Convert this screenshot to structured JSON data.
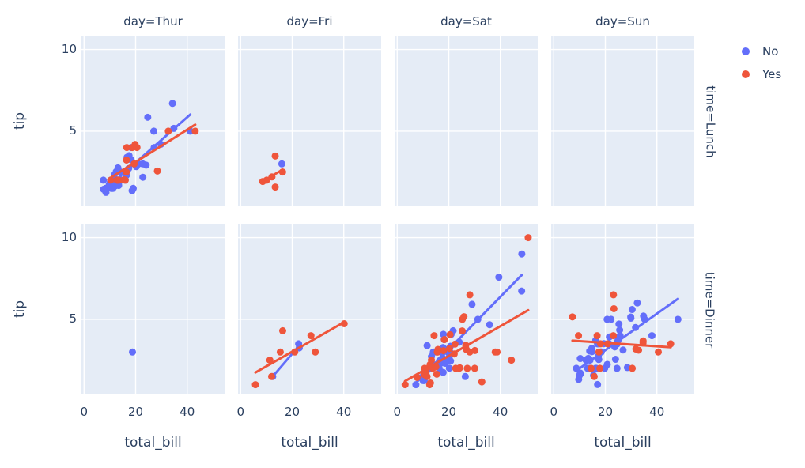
{
  "colors": {
    "series_no": "#636EFA",
    "series_yes": "#EF553B",
    "panel_bg": "#E5ECF6",
    "grid": "#FFFFFF",
    "text": "#2a3f5f"
  },
  "legend": {
    "items": [
      {
        "label": "No",
        "color": "#636EFA"
      },
      {
        "label": "Yes",
        "color": "#EF553B"
      }
    ]
  },
  "chart_data": {
    "type": "scatter",
    "title": "",
    "xlabel": "total_bill",
    "ylabel": "tip",
    "x_ticks": [
      0,
      20,
      40
    ],
    "y_ticks": [
      5,
      10
    ],
    "x_range": [
      -1,
      54.5
    ],
    "y_range": [
      0.4,
      10.85
    ],
    "grid": true,
    "legend_position": "top-right",
    "trendline": "ols",
    "facet_col_titles": [
      "day=Thur",
      "day=Fri",
      "day=Sat",
      "day=Sun"
    ],
    "facet_row_titles": [
      "time=Lunch",
      "time=Dinner"
    ],
    "series_names": [
      "No",
      "Yes"
    ],
    "facets": [
      {
        "row": 0,
        "col": 0,
        "name": "thur-lunch",
        "series": {
          "No": [
            [
              27.2,
              4.0
            ],
            [
              22.76,
              3.0
            ],
            [
              17.29,
              2.71
            ],
            [
              16.66,
              3.4
            ],
            [
              10.07,
              1.83
            ],
            [
              15.98,
              2.03
            ],
            [
              34.83,
              5.17
            ],
            [
              13.03,
              2.0
            ],
            [
              18.28,
              4.0
            ],
            [
              24.71,
              5.85
            ],
            [
              21.16,
              3.0
            ],
            [
              10.65,
              1.5
            ],
            [
              12.43,
              1.8
            ],
            [
              24.08,
              2.92
            ],
            [
              11.69,
              2.31
            ],
            [
              13.42,
              1.68
            ],
            [
              14.26,
              2.5
            ],
            [
              15.95,
              2.0
            ],
            [
              12.48,
              2.52
            ],
            [
              29.8,
              4.2
            ],
            [
              8.52,
              1.48
            ],
            [
              14.52,
              2.0
            ],
            [
              11.38,
              2.0
            ],
            [
              22.82,
              2.18
            ],
            [
              19.08,
              1.5
            ],
            [
              20.27,
              2.83
            ],
            [
              11.17,
              1.5
            ],
            [
              12.26,
              2.0
            ],
            [
              18.26,
              3.25
            ],
            [
              8.51,
              1.25
            ],
            [
              10.33,
              2.0
            ],
            [
              14.15,
              2.0
            ],
            [
              13.16,
              2.75
            ],
            [
              17.47,
              3.5
            ],
            [
              34.3,
              6.7
            ],
            [
              41.19,
              5.0
            ],
            [
              27.05,
              5.0
            ],
            [
              16.43,
              2.3
            ],
            [
              8.35,
              1.5
            ],
            [
              18.64,
              1.36
            ],
            [
              11.87,
              1.63
            ],
            [
              9.78,
              1.73
            ],
            [
              7.51,
              2.0
            ],
            [
              7.56,
              1.44
            ]
          ],
          "Yes": [
            [
              19.44,
              3.0
            ],
            [
              32.68,
              5.0
            ],
            [
              16.0,
              2.0
            ],
            [
              19.81,
              4.19
            ],
            [
              28.44,
              2.56
            ],
            [
              15.48,
              2.02
            ],
            [
              16.58,
              4.0
            ],
            [
              10.34,
              2.0
            ],
            [
              43.11,
              5.0
            ],
            [
              13.0,
              2.0
            ],
            [
              13.51,
              2.0
            ],
            [
              18.71,
              4.0
            ],
            [
              12.74,
              2.01
            ],
            [
              13.0,
              2.0
            ],
            [
              16.4,
              2.5
            ],
            [
              20.53,
              4.0
            ],
            [
              16.47,
              3.23
            ]
          ]
        }
      },
      {
        "row": 0,
        "col": 1,
        "name": "fri-lunch",
        "series": {
          "No": [
            [
              15.98,
              3.0
            ]
          ],
          "Yes": [
            [
              12.16,
              2.2
            ],
            [
              13.42,
              3.48
            ],
            [
              8.58,
              1.92
            ],
            [
              13.42,
              1.58
            ],
            [
              16.27,
              2.5
            ],
            [
              10.09,
              2.0
            ]
          ]
        }
      },
      {
        "row": 0,
        "col": 2,
        "name": "sat-lunch",
        "series": {
          "No": [],
          "Yes": []
        }
      },
      {
        "row": 0,
        "col": 3,
        "name": "sun-lunch",
        "series": {
          "No": [],
          "Yes": []
        }
      },
      {
        "row": 1,
        "col": 0,
        "name": "thur-dinner",
        "series": {
          "No": [
            [
              18.78,
              3.0
            ]
          ],
          "Yes": []
        }
      },
      {
        "row": 1,
        "col": 1,
        "name": "fri-dinner",
        "series": {
          "No": [
            [
              22.49,
              3.5
            ],
            [
              22.75,
              3.25
            ],
            [
              12.46,
              1.5
            ]
          ],
          "Yes": [
            [
              28.97,
              3.0
            ],
            [
              5.75,
              1.0
            ],
            [
              16.32,
              4.3
            ],
            [
              40.17,
              4.73
            ],
            [
              27.28,
              4.0
            ],
            [
              12.03,
              1.5
            ],
            [
              21.01,
              3.0
            ],
            [
              11.35,
              2.5
            ],
            [
              15.38,
              3.0
            ]
          ]
        }
      },
      {
        "row": 1,
        "col": 2,
        "name": "sat-dinner",
        "series": {
          "No": [
            [
              20.65,
              3.35
            ],
            [
              17.92,
              4.08
            ],
            [
              20.29,
              2.75
            ],
            [
              15.77,
              2.23
            ],
            [
              39.42,
              7.58
            ],
            [
              19.82,
              3.18
            ],
            [
              17.81,
              2.34
            ],
            [
              13.37,
              2.0
            ],
            [
              12.69,
              2.0
            ],
            [
              21.7,
              4.3
            ],
            [
              19.65,
              3.0
            ],
            [
              9.55,
              1.45
            ],
            [
              18.35,
              2.5
            ],
            [
              15.06,
              3.0
            ],
            [
              20.69,
              2.45
            ],
            [
              17.78,
              3.27
            ],
            [
              24.06,
              3.6
            ],
            [
              16.31,
              2.0
            ],
            [
              16.93,
              3.07
            ],
            [
              18.69,
              2.31
            ],
            [
              31.27,
              5.0
            ],
            [
              16.04,
              2.24
            ],
            [
              26.41,
              1.5
            ],
            [
              48.27,
              6.73
            ],
            [
              17.59,
              2.64
            ],
            [
              20.08,
              3.15
            ],
            [
              16.45,
              2.47
            ],
            [
              20.23,
              2.01
            ],
            [
              12.02,
              1.97
            ],
            [
              17.07,
              3.0
            ],
            [
              14.73,
              2.2
            ],
            [
              10.51,
              1.25
            ],
            [
              20.92,
              4.08
            ],
            [
              18.24,
              3.76
            ],
            [
              14.0,
              3.0
            ],
            [
              7.25,
              1.0
            ],
            [
              48.33,
              9.0
            ],
            [
              20.45,
              3.0
            ],
            [
              13.28,
              2.72
            ],
            [
              11.61,
              3.39
            ],
            [
              10.77,
              1.47
            ],
            [
              10.07,
              1.25
            ],
            [
              35.83,
              4.67
            ],
            [
              29.03,
              5.92
            ],
            [
              17.82,
              1.75
            ]
          ],
          "Yes": [
            [
              38.01,
              3.0
            ],
            [
              11.24,
              1.76
            ],
            [
              20.29,
              3.21
            ],
            [
              13.81,
              2.0
            ],
            [
              11.02,
              1.98
            ],
            [
              18.29,
              3.76
            ],
            [
              3.07,
              1.0
            ],
            [
              15.01,
              2.09
            ],
            [
              26.86,
              3.14
            ],
            [
              25.28,
              5.0
            ],
            [
              17.92,
              3.08
            ],
            [
              44.3,
              2.5
            ],
            [
              22.42,
              3.48
            ],
            [
              15.36,
              1.64
            ],
            [
              20.49,
              4.06
            ],
            [
              25.21,
              4.29
            ],
            [
              14.31,
              4.0
            ],
            [
              10.59,
              1.61
            ],
            [
              10.63,
              2.0
            ],
            [
              50.81,
              10.0
            ],
            [
              15.81,
              3.16
            ],
            [
              26.59,
              3.41
            ],
            [
              38.73,
              3.0
            ],
            [
              24.27,
              2.03
            ],
            [
              12.76,
              2.23
            ],
            [
              30.06,
              2.0
            ],
            [
              25.89,
              5.16
            ],
            [
              13.27,
              2.5
            ],
            [
              28.17,
              6.5
            ],
            [
              12.9,
              1.1
            ],
            [
              28.15,
              3.0
            ],
            [
              11.59,
              1.5
            ],
            [
              7.74,
              1.44
            ],
            [
              30.14,
              3.09
            ],
            [
              22.12,
              2.88
            ],
            [
              24.01,
              2.0
            ],
            [
              15.69,
              3.0
            ],
            [
              15.53,
              3.0
            ],
            [
              12.6,
              1.0
            ],
            [
              32.83,
              1.17
            ],
            [
              27.18,
              2.0
            ],
            [
              22.67,
              2.0
            ]
          ]
        }
      },
      {
        "row": 1,
        "col": 3,
        "name": "sun-dinner",
        "series": {
          "No": [
            [
              16.99,
              1.01
            ],
            [
              10.34,
              1.66
            ],
            [
              21.01,
              3.5
            ],
            [
              23.68,
              3.31
            ],
            [
              24.59,
              3.61
            ],
            [
              25.29,
              4.71
            ],
            [
              8.77,
              2.0
            ],
            [
              26.88,
              3.12
            ],
            [
              15.04,
              1.96
            ],
            [
              14.78,
              3.23
            ],
            [
              10.27,
              1.71
            ],
            [
              35.26,
              5.0
            ],
            [
              15.42,
              1.57
            ],
            [
              18.43,
              3.0
            ],
            [
              14.83,
              3.02
            ],
            [
              21.58,
              3.92
            ],
            [
              10.33,
              1.67
            ],
            [
              16.29,
              3.71
            ],
            [
              16.97,
              3.5
            ],
            [
              17.46,
              2.54
            ],
            [
              13.94,
              3.06
            ],
            [
              9.68,
              1.32
            ],
            [
              30.4,
              5.6
            ],
            [
              18.29,
              3.0
            ],
            [
              22.23,
              5.0
            ],
            [
              32.4,
              6.0
            ],
            [
              28.55,
              2.05
            ],
            [
              18.04,
              3.0
            ],
            [
              12.54,
              2.5
            ],
            [
              10.29,
              2.6
            ],
            [
              34.81,
              5.2
            ],
            [
              9.94,
              1.56
            ],
            [
              25.56,
              4.34
            ],
            [
              19.49,
              3.51
            ],
            [
              38.07,
              4.0
            ],
            [
              23.95,
              2.55
            ],
            [
              25.71,
              4.0
            ],
            [
              17.31,
              3.5
            ],
            [
              29.93,
              5.07
            ],
            [
              14.07,
              2.5
            ],
            [
              13.13,
              2.0
            ],
            [
              17.26,
              2.74
            ],
            [
              24.55,
              2.0
            ],
            [
              19.77,
              2.0
            ],
            [
              29.85,
              5.14
            ],
            [
              48.17,
              5.0
            ],
            [
              25.0,
              3.75
            ],
            [
              13.39,
              2.61
            ],
            [
              16.49,
              2.0
            ],
            [
              21.5,
              3.5
            ],
            [
              12.66,
              2.5
            ],
            [
              16.21,
              2.0
            ],
            [
              13.81,
              2.0
            ],
            [
              24.52,
              3.48
            ],
            [
              20.76,
              2.24
            ],
            [
              31.71,
              4.5
            ],
            [
              20.69,
              5.0
            ]
          ],
          "Yes": [
            [
              17.51,
              3.0
            ],
            [
              7.25,
              5.15
            ],
            [
              31.85,
              3.18
            ],
            [
              16.82,
              4.0
            ],
            [
              32.9,
              3.11
            ],
            [
              17.89,
              2.0
            ],
            [
              14.48,
              2.0
            ],
            [
              9.6,
              4.0
            ],
            [
              34.63,
              3.55
            ],
            [
              34.65,
              3.68
            ],
            [
              23.33,
              5.65
            ],
            [
              45.35,
              3.5
            ],
            [
              23.17,
              6.5
            ],
            [
              40.55,
              3.0
            ],
            [
              20.9,
              3.5
            ],
            [
              30.46,
              2.0
            ],
            [
              18.15,
              3.5
            ],
            [
              23.1,
              4.0
            ],
            [
              15.69,
              1.5
            ]
          ]
        }
      }
    ]
  }
}
